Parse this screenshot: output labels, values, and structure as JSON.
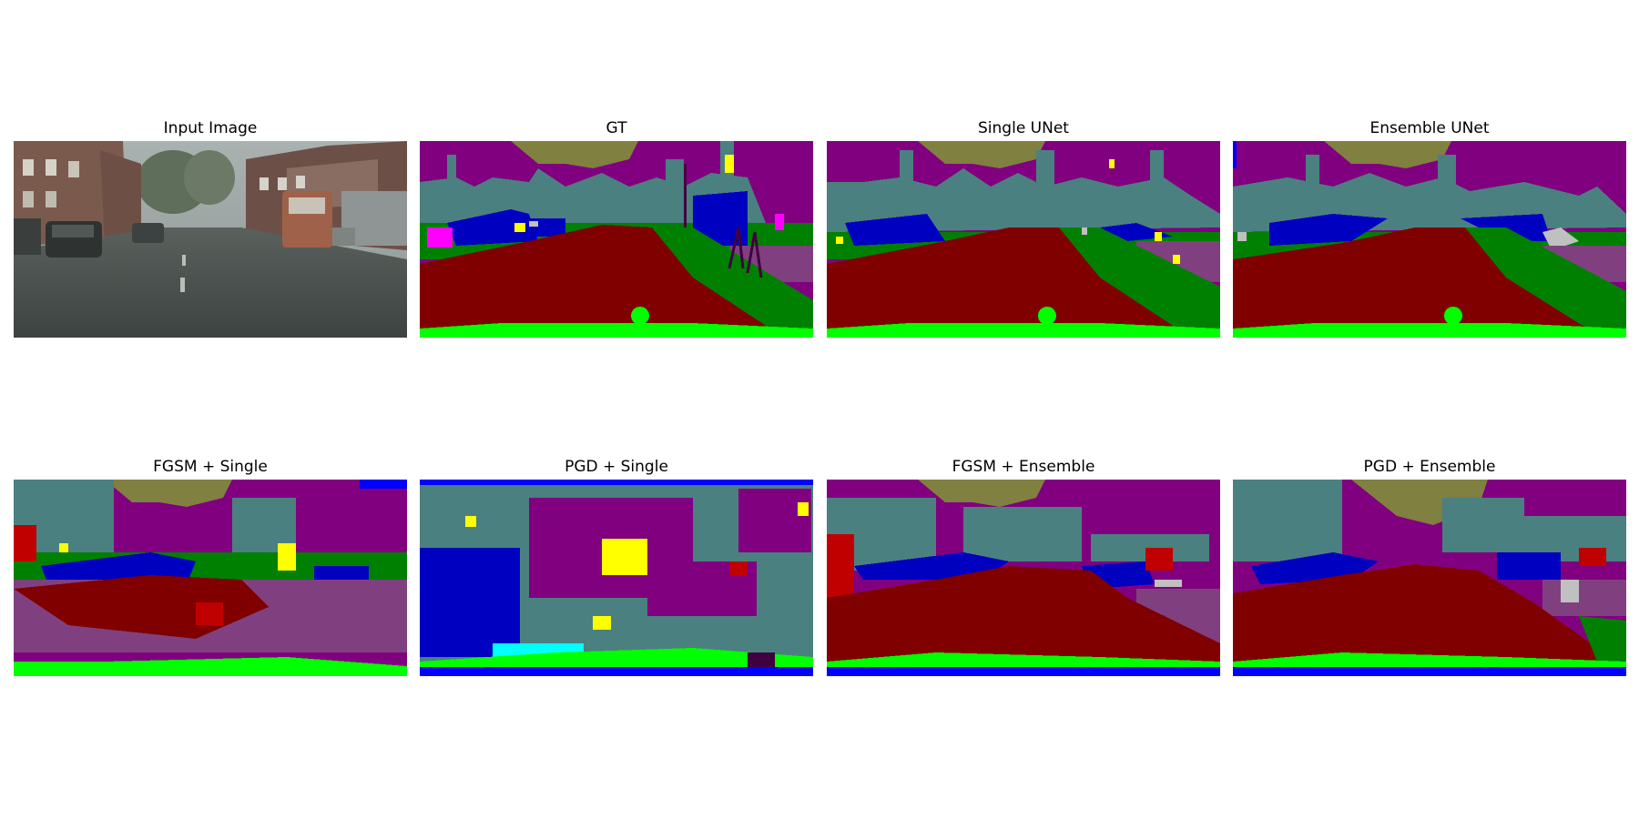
{
  "figure": {
    "panels": [
      {
        "title": "Input Image",
        "kind": "photo"
      },
      {
        "title": "GT",
        "kind": "segmentation"
      },
      {
        "title": "Single UNet",
        "kind": "segmentation"
      },
      {
        "title": "Ensemble UNet",
        "kind": "segmentation"
      },
      {
        "title": "FGSM + Single",
        "kind": "segmentation-noisy"
      },
      {
        "title": "PGD + Single",
        "kind": "segmentation-noisy"
      },
      {
        "title": "FGSM + Ensemble",
        "kind": "segmentation-noisy"
      },
      {
        "title": "PGD + Ensemble",
        "kind": "segmentation-noisy"
      }
    ]
  },
  "palette": {
    "sky": "#808040",
    "vegetation": "#4b8080",
    "building": "#800080",
    "car": "#0000c0",
    "road": "#800000",
    "sidewalk": "#804080",
    "terrain": "#008000",
    "ego_vehicle": "#00ff00",
    "sign": "#ffff00",
    "person": "#ff00ff",
    "pole": "#400040",
    "other": "#c0c0c0",
    "water": "#00ffff",
    "blue_edge": "#0000ff",
    "red": "#c00000"
  }
}
